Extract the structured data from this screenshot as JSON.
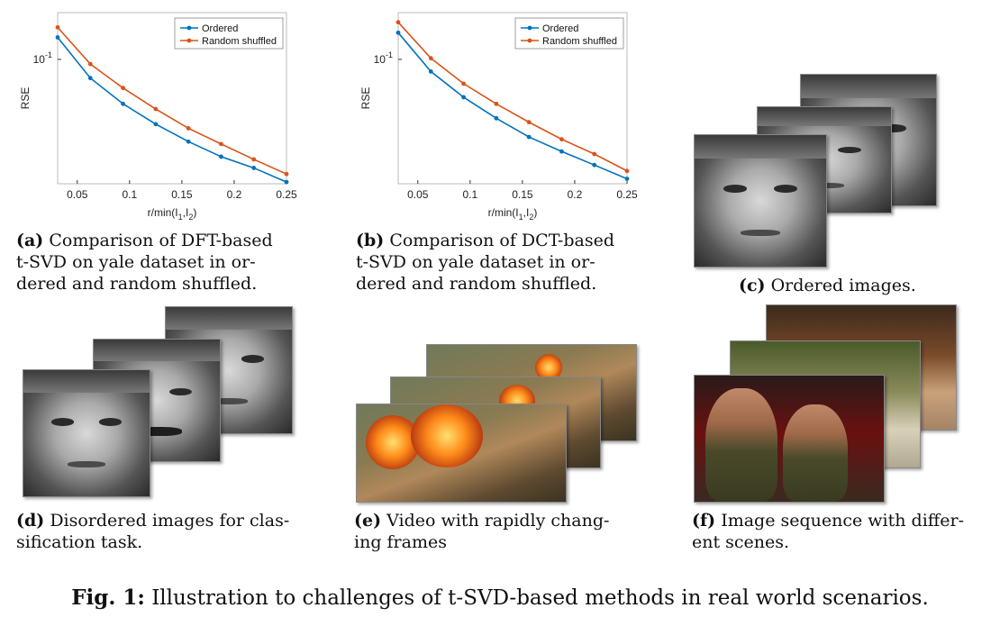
{
  "chart_data": [
    {
      "type": "line",
      "ylabel": "RSE",
      "xlabel": "r/min(I1,I2)",
      "xlabel_main": "r/min(I",
      "xlabel_sub1": "1",
      "xlabel_mid": ",I",
      "xlabel_sub2": "2",
      "xlabel_end": ")",
      "y_scale": "log",
      "y_tick_label_base": "10",
      "y_tick_label_exp": "-1",
      "x_ticks": [
        "0.05",
        "0.1",
        "0.15",
        "0.2",
        "0.25"
      ],
      "xlim": [
        0.03125,
        0.25
      ],
      "ylim": [
        0.034,
        0.15
      ],
      "legend_position": "top-right",
      "x": [
        0.03125,
        0.0625,
        0.09375,
        0.125,
        0.15625,
        0.1875,
        0.21875,
        0.25
      ],
      "series": [
        {
          "name": "Ordered",
          "color": "#0072BD",
          "values": [
            0.121,
            0.085,
            0.068,
            0.057,
            0.049,
            0.043,
            0.039,
            0.0345
          ]
        },
        {
          "name": "Random shuffled",
          "color": "#D95319",
          "values": [
            0.132,
            0.096,
            0.078,
            0.065,
            0.055,
            0.048,
            0.042,
            0.037
          ]
        }
      ]
    },
    {
      "type": "line",
      "ylabel": "RSE",
      "xlabel": "r/min(I1,I2)",
      "xlabel_main": "r/min(I",
      "xlabel_sub1": "1",
      "xlabel_mid": ",I",
      "xlabel_sub2": "2",
      "xlabel_end": ")",
      "y_scale": "log",
      "y_tick_label_base": "10",
      "y_tick_label_exp": "-1",
      "x_ticks": [
        "0.05",
        "0.1",
        "0.15",
        "0.2",
        "0.25"
      ],
      "xlim": [
        0.03125,
        0.25
      ],
      "ylim": [
        0.034,
        0.15
      ],
      "legend_position": "top-right",
      "x": [
        0.03125,
        0.0625,
        0.09375,
        0.125,
        0.15625,
        0.1875,
        0.21875,
        0.25
      ],
      "series": [
        {
          "name": "Ordered",
          "color": "#0072BD",
          "values": [
            0.126,
            0.09,
            0.072,
            0.06,
            0.051,
            0.045,
            0.04,
            0.0355
          ]
        },
        {
          "name": "Random shuffled",
          "color": "#D95319",
          "values": [
            0.138,
            0.101,
            0.081,
            0.068,
            0.058,
            0.05,
            0.044,
            0.038
          ]
        }
      ]
    }
  ],
  "captions": {
    "a": {
      "label": "(a)",
      "lines": [
        "Comparison of DFT-based",
        "t-SVD on yale dataset in or-",
        "dered and random shuffled."
      ]
    },
    "b": {
      "label": "(b)",
      "lines": [
        "Comparison of DCT-based",
        "t-SVD on yale dataset in or-",
        "dered and random shuffled."
      ]
    },
    "c": {
      "label": "(c)",
      "lines": [
        "Ordered images."
      ]
    },
    "d": {
      "label": "(d)",
      "lines": [
        "Disordered images for clas-",
        "sification task."
      ]
    },
    "e": {
      "label": "(e)",
      "lines": [
        "Video with rapidly chang-",
        "ing frames"
      ]
    },
    "f": {
      "label": "(f)",
      "lines": [
        "Image sequence with differ-",
        "ent scenes."
      ]
    }
  },
  "figure_caption": {
    "label": "Fig. 1:",
    "text": "Illustration to challenges of t-SVD-based methods in real world scenarios."
  }
}
